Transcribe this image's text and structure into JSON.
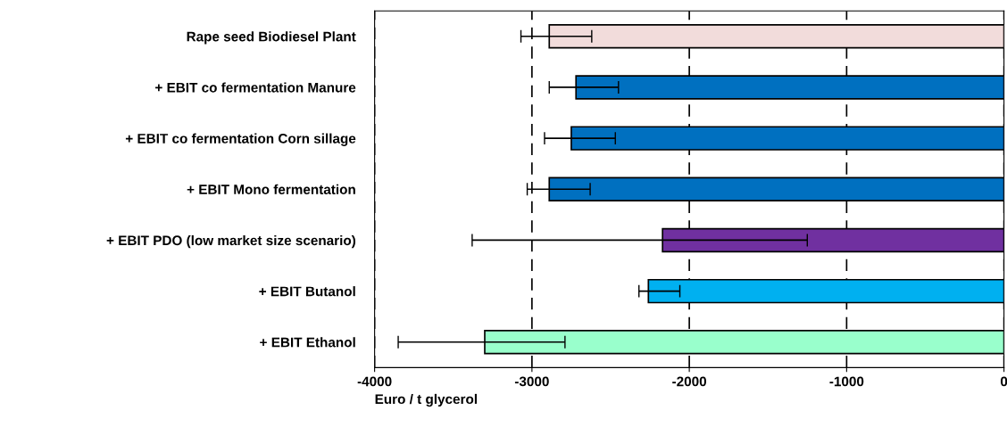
{
  "chart_data": {
    "type": "bar",
    "orientation": "horizontal",
    "xlabel": "Euro / t glycerol",
    "categories": [
      "Rape seed Biodiesel Plant",
      "+ EBIT co fermentation Manure",
      "+ EBIT co fermentation Corn sillage",
      "+ EBIT Mono fermentation",
      "+ EBIT PDO (low market size scenario)",
      "+ EBIT Butanol",
      "+ EBIT Ethanol"
    ],
    "values": [
      -2890,
      -2720,
      -2750,
      -2890,
      -2170,
      -2260,
      -3300
    ],
    "colors": [
      "#f2dcdb",
      "#0070c0",
      "#0070c0",
      "#0070c0",
      "#7030a0",
      "#00b0f0",
      "#99ffcc"
    ],
    "errors": [
      [
        -3070,
        -2620
      ],
      [
        -2890,
        -2450
      ],
      [
        -2920,
        -2470
      ],
      [
        -3030,
        -2630
      ],
      [
        -3380,
        -1250
      ],
      [
        -2320,
        -2060
      ],
      [
        -3850,
        -2790
      ]
    ],
    "xlim": [
      -4000,
      0
    ],
    "xticks": [
      -4000,
      -3000,
      -2000,
      -1000,
      0
    ],
    "grid": "x"
  }
}
